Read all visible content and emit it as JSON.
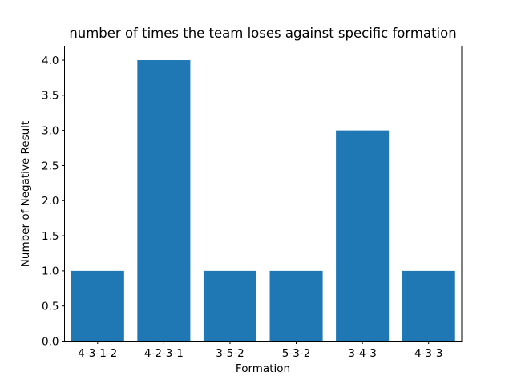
{
  "figure": {
    "background_color": "#ffffff",
    "frame_color": "#000000"
  },
  "chart_data": {
    "type": "bar",
    "title": "number of times the team loses against specific formation",
    "xlabel": "Formation",
    "ylabel": "Number of Negative Result",
    "categories": [
      "4-3-1-2",
      "4-2-3-1",
      "3-5-2",
      "5-3-2",
      "3-4-3",
      "4-3-3"
    ],
    "values": [
      1,
      4,
      1,
      1,
      3,
      1
    ],
    "ylim": [
      0,
      4.2
    ],
    "yticks": [
      "0.0",
      "0.5",
      "1.0",
      "1.5",
      "2.0",
      "2.5",
      "3.0",
      "3.5",
      "4.0"
    ],
    "ytick_values": [
      0,
      0.5,
      1,
      1.5,
      2,
      2.5,
      3,
      3.5,
      4
    ],
    "bar_color": "#1f77b4",
    "grid": false,
    "legend_position": "none"
  }
}
